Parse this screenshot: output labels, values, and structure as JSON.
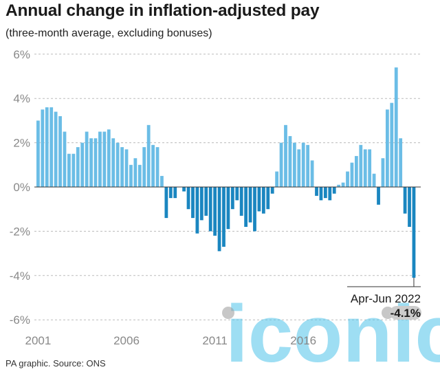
{
  "header": {
    "title": "Annual change in inflation-adjusted pay",
    "subtitle": "(three-month average, excluding bonuses)"
  },
  "footer": {
    "source": "PA graphic. Source: ONS"
  },
  "watermark": {
    "text": "iconic"
  },
  "colors": {
    "positive": "#6bbde6",
    "negative": "#1a86c0",
    "grid": "#bbbbbb",
    "zero_line": "#333333",
    "axis_text": "#888888",
    "highlight_bg": "#cccccc"
  },
  "chart_data": {
    "type": "bar",
    "ylim": [
      -6,
      6
    ],
    "yticks": [
      6,
      4,
      2,
      0,
      -2,
      -4,
      -6
    ],
    "ytick_labels": [
      "6%",
      "4%",
      "2%",
      "0%",
      "-2%",
      "-4%",
      "-6%"
    ],
    "x_tick_labels": [
      "2001",
      "2006",
      "2011",
      "2016"
    ],
    "x_tick_index": [
      0,
      20,
      40,
      60
    ],
    "grid": true,
    "values": [
      3.0,
      3.5,
      3.6,
      3.6,
      3.4,
      3.2,
      2.5,
      1.5,
      1.5,
      1.8,
      2.0,
      2.5,
      2.2,
      2.2,
      2.5,
      2.5,
      2.6,
      2.2,
      2.0,
      1.8,
      1.7,
      1.0,
      1.3,
      1.0,
      1.8,
      2.8,
      1.9,
      1.8,
      0.5,
      -1.4,
      -0.5,
      -0.5,
      0.0,
      -0.2,
      -1.0,
      -1.4,
      -2.1,
      -1.5,
      -1.3,
      -2.0,
      -2.2,
      -2.9,
      -2.7,
      -1.9,
      -1.0,
      -0.6,
      -1.3,
      -1.8,
      -1.6,
      -2.0,
      -1.1,
      -1.2,
      -1.0,
      -0.3,
      0.7,
      2.0,
      2.8,
      2.3,
      2.0,
      1.7,
      2.0,
      1.9,
      1.2,
      -0.4,
      -0.6,
      -0.5,
      -0.6,
      -0.3,
      0.1,
      0.2,
      0.7,
      1.1,
      1.4,
      1.9,
      1.7,
      1.7,
      0.6,
      -0.8,
      1.3,
      3.5,
      3.8,
      5.4,
      2.2,
      -1.2,
      -1.8,
      -4.1
    ],
    "annotation": {
      "period": "Apr-Jun 2022",
      "value": "-4.1%"
    }
  }
}
